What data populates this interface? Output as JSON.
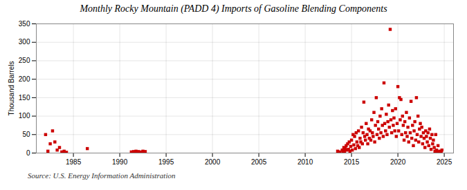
{
  "chart_data": {
    "type": "scatter",
    "title": "Monthly Rocky Mountain (PADD 4) Imports of Gasoline Blending Components",
    "ylabel": "Thousand Barrels",
    "source": "Source: U.S. Energy Information Administration",
    "color": "#cc0000",
    "marker": "square",
    "grid": true,
    "xlim": [
      1981,
      2026
    ],
    "ylim": [
      0,
      350
    ],
    "xticks": [
      1985,
      1990,
      1995,
      2000,
      2005,
      2010,
      2015,
      2020,
      2025
    ],
    "yticks": [
      0,
      50,
      100,
      150,
      200,
      250,
      300,
      350
    ],
    "x": [
      1982.0,
      1982.25,
      1982.5,
      1982.75,
      1983.0,
      1983.25,
      1983.5,
      1983.75,
      1984.0,
      1984.25,
      1986.5,
      1991.25,
      1991.5,
      1991.75,
      1992.0,
      1992.25,
      1992.5,
      1992.75,
      2013.5,
      2013.75,
      2014.0,
      2014.08,
      2014.17,
      2014.25,
      2014.33,
      2014.42,
      2014.5,
      2014.58,
      2014.67,
      2014.75,
      2014.83,
      2014.92,
      2015.0,
      2015.08,
      2015.17,
      2015.25,
      2015.33,
      2015.42,
      2015.5,
      2015.58,
      2015.67,
      2015.75,
      2015.83,
      2015.92,
      2016.0,
      2016.08,
      2016.17,
      2016.25,
      2016.33,
      2016.42,
      2016.5,
      2016.58,
      2016.67,
      2016.75,
      2016.83,
      2016.92,
      2017.0,
      2017.08,
      2017.17,
      2017.25,
      2017.33,
      2017.42,
      2017.5,
      2017.58,
      2017.67,
      2017.75,
      2017.83,
      2017.92,
      2018.0,
      2018.08,
      2018.17,
      2018.25,
      2018.33,
      2018.42,
      2018.5,
      2018.58,
      2018.67,
      2018.75,
      2018.83,
      2018.92,
      2019.0,
      2019.08,
      2019.17,
      2019.25,
      2019.33,
      2019.42,
      2019.5,
      2019.58,
      2019.67,
      2019.75,
      2019.83,
      2019.92,
      2020.0,
      2020.08,
      2020.17,
      2020.25,
      2020.33,
      2020.42,
      2020.5,
      2020.58,
      2020.67,
      2020.75,
      2020.83,
      2020.92,
      2021.0,
      2021.08,
      2021.17,
      2021.25,
      2021.33,
      2021.42,
      2021.5,
      2021.58,
      2021.67,
      2021.75,
      2021.83,
      2021.92,
      2022.0,
      2022.08,
      2022.17,
      2022.25,
      2022.33,
      2022.42,
      2022.5,
      2022.58,
      2022.67,
      2022.75,
      2022.83,
      2022.92,
      2023.0,
      2023.08,
      2023.17,
      2023.25,
      2023.33,
      2023.42,
      2023.5,
      2023.58,
      2023.67,
      2023.75,
      2023.83,
      2023.92,
      2024.0,
      2024.08,
      2024.17,
      2024.25,
      2024.33,
      2024.5,
      2024.67,
      2024.75
    ],
    "values": [
      50,
      5,
      25,
      60,
      30,
      8,
      15,
      3,
      5,
      2,
      12,
      3,
      4,
      5,
      4,
      3,
      5,
      4,
      5,
      3,
      8,
      3,
      15,
      5,
      12,
      20,
      8,
      25,
      10,
      30,
      5,
      18,
      35,
      8,
      50,
      22,
      45,
      12,
      55,
      30,
      20,
      60,
      15,
      40,
      30,
      70,
      25,
      55,
      138,
      45,
      35,
      80,
      50,
      25,
      65,
      40,
      60,
      35,
      90,
      55,
      45,
      110,
      30,
      75,
      150,
      50,
      85,
      65,
      40,
      100,
      55,
      120,
      75,
      45,
      190,
      80,
      60,
      105,
      50,
      85,
      130,
      70,
      335,
      90,
      55,
      115,
      75,
      95,
      60,
      120,
      45,
      80,
      180,
      60,
      150,
      90,
      145,
      50,
      100,
      75,
      35,
      85,
      55,
      110,
      45,
      70,
      30,
      95,
      55,
      140,
      40,
      75,
      20,
      60,
      85,
      35,
      150,
      50,
      100,
      30,
      65,
      80,
      45,
      70,
      25,
      55,
      40,
      15,
      60,
      45,
      30,
      55,
      20,
      65,
      40,
      10,
      50,
      25,
      35,
      15,
      5,
      50,
      8,
      3,
      20,
      5,
      2,
      8
    ]
  }
}
